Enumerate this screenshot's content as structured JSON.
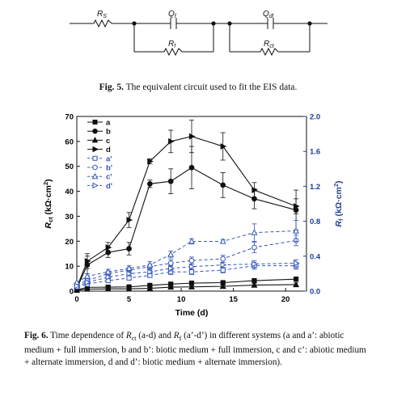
{
  "fig5": {
    "label": "Fig. 5.",
    "caption": "The equivalent circuit used to fit the EIS data.",
    "components": {
      "rs_main": "R",
      "rs_sub": "S",
      "qf_main": "Q",
      "qf_sub": "f",
      "rf_main": "R",
      "rf_sub": "f",
      "qdl_main": "Q",
      "qdl_sub": "dl",
      "rct_main": "R",
      "rct_sub": "ct"
    }
  },
  "fig6": {
    "label": "Fig. 6.",
    "caption_parts": {
      "p1": "Time dependence of ",
      "rct_main": "R",
      "rct_sub": "ct",
      "p2": " (a-d) and ",
      "rf_main": "R",
      "rf_sub": "f",
      "p3": " (a’-d’) in different systems (a and a’: abiotic medium + full immersion, b and b’: biotic medium + full immersion, c and c’: abiotic medium + alternate immersion, d and d’: biotic medium + alternate immersion)."
    }
  },
  "chart_data": {
    "type": "line",
    "xlabel": "Time (d)",
    "ylabel_left": {
      "main": "R",
      "sub": "ct",
      "unit": " (kΩ·cm",
      "sup": "2",
      "close": ")"
    },
    "ylabel_right": {
      "main": "R",
      "sub": "f",
      "unit": " (kΩ·cm",
      "sup": "2",
      "close": ")"
    },
    "xlim": [
      0,
      22
    ],
    "ylim_left": [
      0,
      70
    ],
    "ylim_right": [
      0,
      2.0
    ],
    "xticks": [
      0,
      5,
      10,
      15,
      20
    ],
    "yticks_left": [
      0,
      10,
      20,
      30,
      40,
      50,
      60,
      70
    ],
    "yticks_right": [
      "0.0",
      "0.4",
      "0.8",
      "1.2",
      "1.6",
      "2.0"
    ],
    "right_axis_color": "#1f3f9a",
    "solid_color": "#111111",
    "dashed_color": "#3355bb",
    "legend_position": "top-left",
    "x": [
      0,
      1,
      3,
      5,
      7,
      9,
      11,
      14,
      17,
      21
    ],
    "series": [
      {
        "name": "a",
        "axis": "left",
        "style": "solid",
        "marker": "square",
        "values": [
          0.5,
          1.5,
          1.6,
          1.7,
          2.3,
          2.8,
          3.2,
          3.4,
          4.2,
          4.8
        ],
        "err": [
          0,
          0.4,
          0.4,
          0.4,
          0.5,
          0.5,
          0.6,
          0.6,
          0.7,
          0.8
        ]
      },
      {
        "name": "b",
        "axis": "left",
        "style": "solid",
        "marker": "circle",
        "values": [
          1,
          10.5,
          15.5,
          17,
          43,
          44,
          49.5,
          42.5,
          37,
          32.5
        ],
        "err": [
          0,
          3.5,
          2,
          2.5,
          1.5,
          5,
          8.5,
          5,
          4,
          8
        ]
      },
      {
        "name": "c",
        "axis": "left",
        "style": "solid",
        "marker": "triangle-up",
        "values": [
          0.3,
          0.8,
          0.9,
          0.9,
          1.1,
          1.6,
          1.7,
          1.9,
          2.4,
          2.6
        ],
        "err": [
          0,
          0.3,
          0.3,
          0.3,
          0.4,
          0.4,
          0.5,
          0.5,
          0.6,
          0.7
        ]
      },
      {
        "name": "d",
        "axis": "left",
        "style": "solid",
        "marker": "triangle-right",
        "values": [
          1.5,
          12,
          17.5,
          28.5,
          52,
          60,
          62,
          58,
          40.5,
          34
        ],
        "err": [
          0,
          3,
          2,
          3,
          1,
          4.5,
          6.5,
          5.5,
          3,
          3
        ]
      },
      {
        "name": "a'",
        "axis": "right",
        "style": "dashed",
        "marker": "square",
        "values": [
          0.05,
          0.08,
          0.12,
          0.15,
          0.18,
          0.22,
          0.22,
          0.24,
          0.29,
          0.29
        ],
        "err": [
          0,
          0.02,
          0.02,
          0.02,
          0.02,
          0.03,
          0.03,
          0.03,
          0.04,
          0.04
        ]
      },
      {
        "name": "b'",
        "axis": "right",
        "style": "dashed",
        "marker": "circle",
        "values": [
          0.08,
          0.12,
          0.2,
          0.24,
          0.28,
          0.32,
          0.35,
          0.37,
          0.5,
          0.58
        ],
        "err": [
          0,
          0.03,
          0.03,
          0.03,
          0.03,
          0.04,
          0.04,
          0.04,
          0.06,
          0.06
        ]
      },
      {
        "name": "c'",
        "axis": "right",
        "style": "dashed",
        "marker": "triangle-up",
        "values": [
          0.1,
          0.17,
          0.22,
          0.26,
          0.3,
          0.42,
          0.57,
          0.57,
          0.67,
          0.69
        ],
        "err": [
          0,
          0.03,
          0.03,
          0.03,
          0.04,
          0.04,
          0.03,
          0.02,
          0.1,
          0.12
        ]
      },
      {
        "name": "d'",
        "axis": "right",
        "style": "dashed",
        "marker": "triangle-right",
        "values": [
          0.06,
          0.1,
          0.16,
          0.2,
          0.22,
          0.26,
          0.28,
          0.3,
          0.31,
          0.32
        ],
        "err": [
          0,
          0.02,
          0.02,
          0.02,
          0.02,
          0.03,
          0.03,
          0.03,
          0.04,
          0.04
        ]
      }
    ]
  }
}
